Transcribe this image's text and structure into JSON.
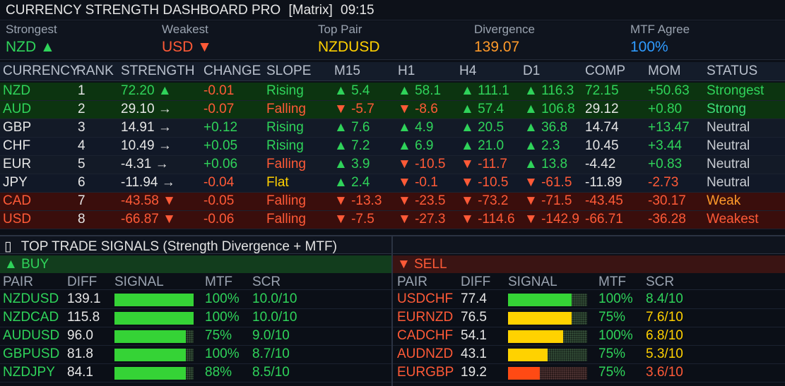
{
  "title": {
    "app": "CURRENCY STRENGTH DASHBOARD PRO",
    "mode": "[Matrix]",
    "time": "09:15"
  },
  "summary": [
    {
      "label": "Strongest",
      "value": "NZD ▲",
      "color": "#2fd35a"
    },
    {
      "label": "Weakest",
      "value": "USD ▼",
      "color": "#ff5a37"
    },
    {
      "label": "Top Pair",
      "value": "NZDUSD",
      "color": "#ffd000"
    },
    {
      "label": "Divergence",
      "value": "139.07",
      "color": "#ff9a2a"
    },
    {
      "label": "MTF Agree",
      "value": "100%",
      "color": "#2f9bff"
    }
  ],
  "matrix": {
    "headers": [
      "CURRENCY",
      "RANK",
      "STRENGTH",
      "CHANGE",
      "SLOPE",
      "M15",
      "H1",
      "H4",
      "D1",
      "COMP",
      "MOM",
      "STATUS"
    ],
    "rows": [
      {
        "currency": "NZD",
        "rank": "1",
        "strength": "72.20 ▲",
        "change": "-0.01",
        "slope": "Rising",
        "m15": "▲ 5.4",
        "h1": "▲ 58.1",
        "h4": "▲ 111.1",
        "d1": "▲ 116.3",
        "comp": "72.15",
        "mom": "+50.63",
        "status": "Strongest"
      },
      {
        "currency": "AUD",
        "rank": "2",
        "strength": "29.10 →",
        "change": "-0.07",
        "slope": "Falling",
        "m15": "▼ -5.7",
        "h1": "▼ -8.6",
        "h4": "▲ 57.4",
        "d1": "▲ 106.8",
        "comp": "29.12",
        "mom": "+0.80",
        "status": "Strong"
      },
      {
        "currency": "GBP",
        "rank": "3",
        "strength": "14.91 →",
        "change": "+0.12",
        "slope": "Rising",
        "m15": "▲ 7.6",
        "h1": "▲ 4.9",
        "h4": "▲ 20.5",
        "d1": "▲ 36.8",
        "comp": "14.74",
        "mom": "+13.47",
        "status": "Neutral"
      },
      {
        "currency": "CHF",
        "rank": "4",
        "strength": "10.49 →",
        "change": "+0.05",
        "slope": "Rising",
        "m15": "▲ 7.2",
        "h1": "▲ 6.9",
        "h4": "▲ 21.0",
        "d1": "▲ 2.3",
        "comp": "10.45",
        "mom": "+3.44",
        "status": "Neutral"
      },
      {
        "currency": "EUR",
        "rank": "5",
        "strength": "-4.31 →",
        "change": "+0.06",
        "slope": "Falling",
        "m15": "▲ 3.9",
        "h1": "▼ -10.5",
        "h4": "▼ -11.7",
        "d1": "▲ 13.8",
        "comp": "-4.42",
        "mom": "+0.83",
        "status": "Neutral"
      },
      {
        "currency": "JPY",
        "rank": "6",
        "strength": "-11.94 →",
        "change": "-0.04",
        "slope": "Flat",
        "m15": "▲ 2.4",
        "h1": "▼ -0.1",
        "h4": "▼ -10.5",
        "d1": "▼ -61.5",
        "comp": "-11.89",
        "mom": "-2.73",
        "status": "Neutral"
      },
      {
        "currency": "CAD",
        "rank": "7",
        "strength": "-43.58 ▼",
        "change": "-0.05",
        "slope": "Falling",
        "m15": "▼ -13.3",
        "h1": "▼ -23.5",
        "h4": "▼ -73.2",
        "d1": "▼ -71.5",
        "comp": "-43.45",
        "mom": "-30.17",
        "status": "Weak"
      },
      {
        "currency": "USD",
        "rank": "8",
        "strength": "-66.87 ▼",
        "change": "-0.06",
        "slope": "Falling",
        "m15": "▼ -7.5",
        "h1": "▼ -27.3",
        "h4": "▼ -114.6",
        "d1": "▼ -142.9",
        "comp": "-66.71",
        "mom": "-36.28",
        "status": "Weakest"
      }
    ]
  },
  "signals": {
    "icon": "▯",
    "title": "TOP TRADE SIGNALS  (Strength Divergence + MTF)",
    "headers": [
      "PAIR",
      "DIFF",
      "SIGNAL",
      "MTF",
      "SCR"
    ],
    "buy": {
      "label": "▲ BUY",
      "rows": [
        {
          "pair": "NZDUSD",
          "diff": "139.1",
          "signal": 1.0,
          "color": "#35d336",
          "mtf": "100%",
          "scr": "10.0/10"
        },
        {
          "pair": "NZDCAD",
          "diff": "115.8",
          "signal": 1.0,
          "color": "#35d336",
          "mtf": "100%",
          "scr": "10.0/10"
        },
        {
          "pair": "AUDUSD",
          "diff": "96.0",
          "signal": 0.9,
          "color": "#35d336",
          "mtf": "75%",
          "scr": "9.0/10"
        },
        {
          "pair": "GBPUSD",
          "diff": "81.8",
          "signal": 0.9,
          "color": "#35d336",
          "mtf": "100%",
          "scr": "8.7/10"
        },
        {
          "pair": "NZDJPY",
          "diff": "84.1",
          "signal": 0.9,
          "color": "#35d336",
          "mtf": "88%",
          "scr": "8.5/10"
        }
      ]
    },
    "sell": {
      "label": "▼ SELL",
      "rows": [
        {
          "pair": "USDCHF",
          "diff": "77.4",
          "signal": 0.8,
          "color": "#35d336",
          "mtf": "100%",
          "scr": "8.4/10",
          "scr_color": "#2fd35a"
        },
        {
          "pair": "EURNZD",
          "diff": "76.5",
          "signal": 0.8,
          "color": "#ffd200",
          "mtf": "75%",
          "scr": "7.6/10",
          "scr_color": "#ffd000"
        },
        {
          "pair": "CADCHF",
          "diff": "54.1",
          "signal": 0.7,
          "color": "#ffd200",
          "mtf": "100%",
          "scr": "6.8/10",
          "scr_color": "#ffd000"
        },
        {
          "pair": "AUDNZD",
          "diff": "43.1",
          "signal": 0.5,
          "color": "#ffd200",
          "mtf": "75%",
          "scr": "5.3/10",
          "scr_color": "#ffd000"
        },
        {
          "pair": "EURGBP",
          "diff": "19.2",
          "signal": 0.4,
          "color": "#ff4a14",
          "mtf": "75%",
          "scr": "3.6/10",
          "scr_color": "#ff5a37"
        }
      ]
    }
  }
}
